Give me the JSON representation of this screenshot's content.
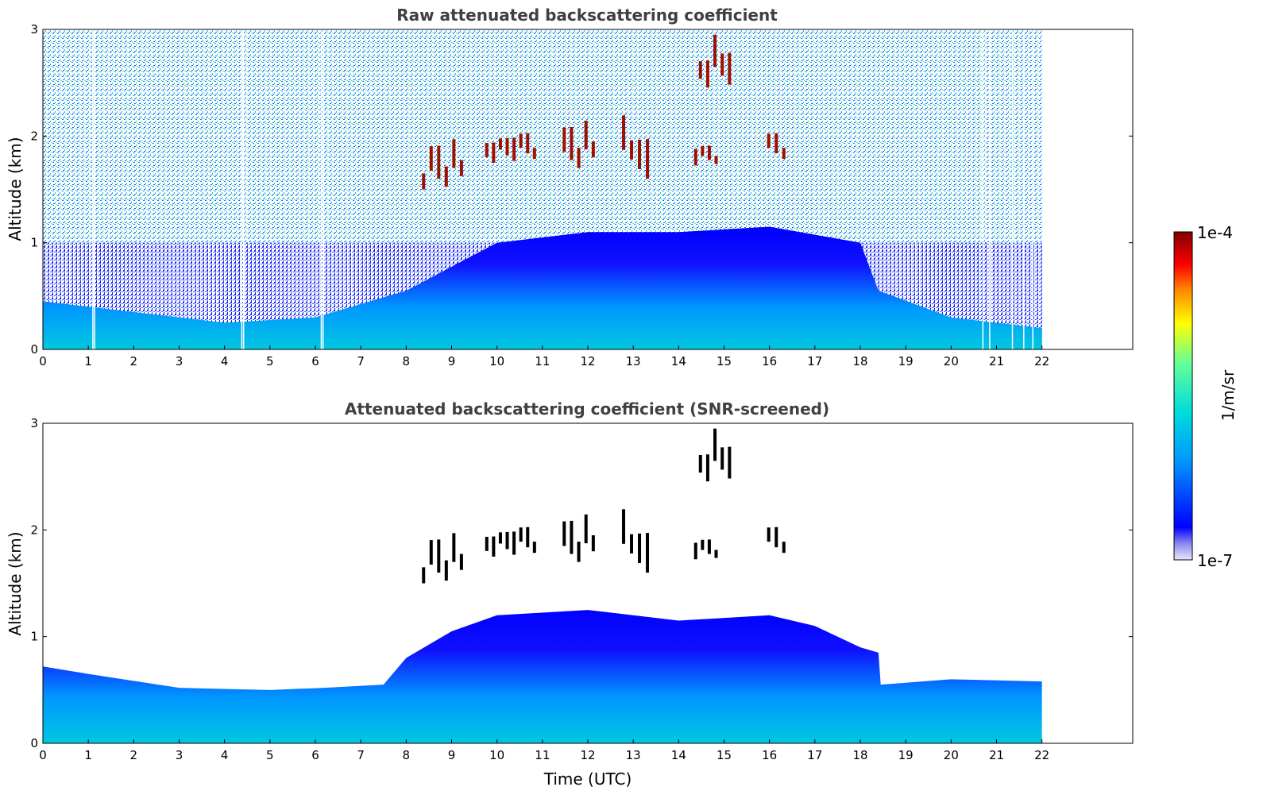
{
  "chart_data": [
    {
      "type": "heatmap",
      "title": "Raw attenuated backscattering coefficient",
      "xlabel": "",
      "ylabel": "Altitude (km)",
      "xlim": [
        0,
        24
      ],
      "ylim": [
        0,
        3
      ],
      "x_ticks": [
        "0",
        "1",
        "2",
        "3",
        "4",
        "5",
        "6",
        "7",
        "8",
        "9",
        "10",
        "11",
        "12",
        "13",
        "14",
        "15",
        "16",
        "17",
        "18",
        "19",
        "20",
        "21",
        "22"
      ],
      "y_ticks": [
        "0",
        "1",
        "2",
        "3"
      ],
      "data_extent_hours": [
        0,
        22
      ],
      "gap_times_hours": [
        1.1,
        1.14,
        4.38,
        4.42,
        6.13,
        6.17,
        20.7,
        20.85,
        21.35,
        21.6,
        21.8
      ],
      "boundary_layer_top_km": [
        [
          0,
          0.45
        ],
        [
          4,
          0.25
        ],
        [
          6,
          0.3
        ],
        [
          8,
          0.55
        ],
        [
          10,
          1.0
        ],
        [
          12,
          1.1
        ],
        [
          14,
          1.1
        ],
        [
          16,
          1.15
        ],
        [
          18,
          1.0
        ],
        [
          18.4,
          0.55
        ],
        [
          20,
          0.3
        ],
        [
          22,
          0.2
        ]
      ],
      "cloud_features": [
        {
          "t_start": 8.3,
          "t_end": 9.3,
          "alt_km": [
            1.5,
            2.0
          ]
        },
        {
          "t_start": 9.7,
          "t_end": 10.9,
          "alt_km": [
            1.75,
            2.1
          ]
        },
        {
          "t_start": 11.4,
          "t_end": 12.2,
          "alt_km": [
            1.7,
            2.2
          ]
        },
        {
          "t_start": 12.7,
          "t_end": 13.4,
          "alt_km": [
            1.6,
            2.2
          ]
        },
        {
          "t_start": 14.3,
          "t_end": 14.9,
          "alt_km": [
            1.7,
            1.95
          ]
        },
        {
          "t_start": 14.4,
          "t_end": 15.2,
          "alt_km": [
            2.4,
            2.95
          ]
        },
        {
          "t_start": 15.9,
          "t_end": 16.4,
          "alt_km": [
            1.75,
            2.1
          ]
        }
      ]
    },
    {
      "type": "heatmap",
      "title": "Attenuated backscattering coefficient (SNR-screened)",
      "xlabel": "Time (UTC)",
      "ylabel": "Altitude (km)",
      "xlim": [
        0,
        24
      ],
      "ylim": [
        0,
        3
      ],
      "x_ticks": [
        "0",
        "1",
        "2",
        "3",
        "4",
        "5",
        "6",
        "7",
        "8",
        "9",
        "10",
        "11",
        "12",
        "13",
        "14",
        "15",
        "16",
        "17",
        "18",
        "19",
        "20",
        "21",
        "22"
      ],
      "y_ticks": [
        "0",
        "1",
        "2",
        "3"
      ],
      "data_extent_hours": [
        0,
        22
      ],
      "screened_layer_top_km": [
        [
          0,
          0.72
        ],
        [
          1,
          0.65
        ],
        [
          3,
          0.52
        ],
        [
          5,
          0.5
        ],
        [
          6.2,
          0.52
        ],
        [
          7.5,
          0.55
        ],
        [
          8,
          0.8
        ],
        [
          9,
          1.05
        ],
        [
          10,
          1.2
        ],
        [
          12,
          1.25
        ],
        [
          14,
          1.15
        ],
        [
          16,
          1.2
        ],
        [
          17,
          1.1
        ],
        [
          18,
          0.9
        ],
        [
          18.4,
          0.85
        ],
        [
          18.45,
          0.55
        ],
        [
          20,
          0.6
        ],
        [
          22,
          0.58
        ]
      ],
      "cloud_features": [
        {
          "t_start": 8.3,
          "t_end": 9.3,
          "alt_km": [
            1.5,
            2.0
          ]
        },
        {
          "t_start": 9.7,
          "t_end": 10.9,
          "alt_km": [
            1.75,
            2.1
          ]
        },
        {
          "t_start": 11.4,
          "t_end": 12.2,
          "alt_km": [
            1.7,
            2.2
          ]
        },
        {
          "t_start": 12.7,
          "t_end": 13.4,
          "alt_km": [
            1.6,
            2.2
          ]
        },
        {
          "t_start": 14.3,
          "t_end": 14.9,
          "alt_km": [
            1.7,
            1.95
          ]
        },
        {
          "t_start": 14.4,
          "t_end": 15.2,
          "alt_km": [
            2.4,
            2.95
          ]
        },
        {
          "t_start": 15.9,
          "t_end": 16.4,
          "alt_km": [
            1.75,
            2.1
          ]
        }
      ]
    }
  ],
  "colorbar": {
    "label": "1/m/sr",
    "max_label": "1e-4",
    "min_label": "1e-7",
    "scale": "log",
    "colormap": [
      "#e8e8f8",
      "#0000ff",
      "#0096ff",
      "#00dcdc",
      "#64ff96",
      "#ffff00",
      "#ff8c00",
      "#ff0000",
      "#800000"
    ]
  }
}
